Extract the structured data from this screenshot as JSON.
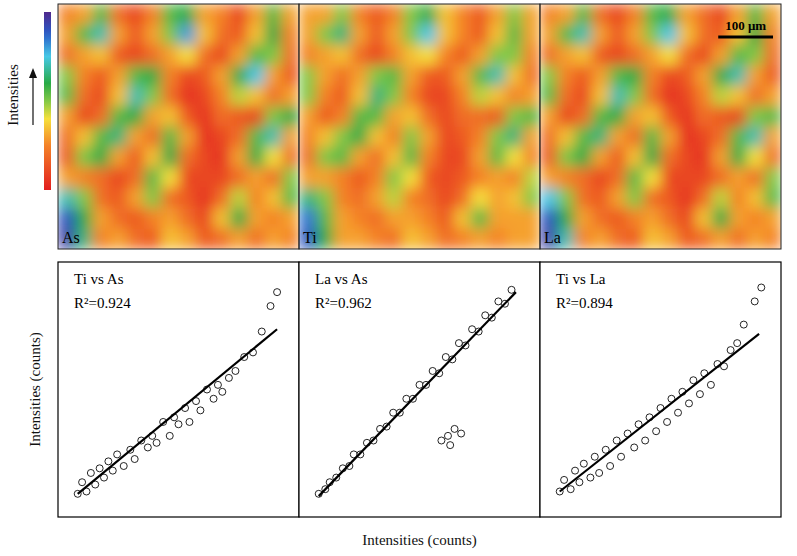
{
  "figure": {
    "colorbar": {
      "label": "Intensities",
      "range": [
        0,
        1
      ]
    },
    "x_label": "Intensities (counts)",
    "y_label": "Intensities (counts)"
  },
  "chart_data": [
    {
      "type": "heatmap",
      "title": "As",
      "xlim": [
        0,
        440
      ],
      "ylim": [
        0,
        444
      ],
      "tick_labels": false,
      "cells": [
        [
          0.25,
          0.3,
          0.55,
          0.2,
          0.1,
          0.25,
          0.55,
          0.6,
          0.3,
          0.25,
          0.1,
          0.3,
          0.55,
          0.3
        ],
        [
          0.3,
          0.55,
          0.7,
          0.3,
          0.15,
          0.3,
          0.5,
          0.8,
          0.35,
          0.2,
          0.15,
          0.35,
          0.6,
          0.25
        ],
        [
          0.2,
          0.3,
          0.35,
          0.15,
          0.1,
          0.2,
          0.3,
          0.4,
          0.2,
          0.1,
          0.3,
          0.55,
          0.5,
          0.2
        ],
        [
          0.5,
          0.25,
          0.15,
          0.3,
          0.55,
          0.6,
          0.25,
          0.1,
          0.15,
          0.3,
          0.6,
          0.75,
          0.3,
          0.15
        ],
        [
          0.55,
          0.2,
          0.1,
          0.35,
          0.7,
          0.5,
          0.2,
          0.05,
          0.1,
          0.25,
          0.45,
          0.35,
          0.2,
          0.3
        ],
        [
          0.3,
          0.1,
          0.2,
          0.55,
          0.6,
          0.3,
          0.35,
          0.15,
          0.05,
          0.2,
          0.15,
          0.1,
          0.5,
          0.6
        ],
        [
          0.2,
          0.35,
          0.55,
          0.65,
          0.3,
          0.2,
          0.55,
          0.3,
          0.05,
          0.1,
          0.2,
          0.55,
          0.7,
          0.3
        ],
        [
          0.15,
          0.5,
          0.6,
          0.3,
          0.15,
          0.35,
          0.6,
          0.2,
          0.1,
          0.05,
          0.3,
          0.6,
          0.4,
          0.2
        ],
        [
          0.3,
          0.25,
          0.2,
          0.1,
          0.2,
          0.55,
          0.4,
          0.1,
          0.1,
          0.1,
          0.2,
          0.3,
          0.2,
          0.5
        ],
        [
          0.7,
          0.5,
          0.2,
          0.15,
          0.3,
          0.5,
          0.2,
          0.15,
          0.05,
          0.2,
          0.45,
          0.25,
          0.35,
          0.55
        ],
        [
          0.9,
          0.6,
          0.3,
          0.2,
          0.15,
          0.25,
          0.3,
          0.2,
          0.1,
          0.35,
          0.6,
          0.3,
          0.25,
          0.3
        ],
        [
          0.95,
          0.65,
          0.25,
          0.3,
          0.2,
          0.15,
          0.35,
          0.3,
          0.15,
          0.2,
          0.3,
          0.2,
          0.3,
          0.25
        ]
      ]
    },
    {
      "type": "heatmap",
      "title": "Ti",
      "xlim": [
        0,
        440
      ],
      "ylim": [
        0,
        444
      ],
      "tick_labels": false,
      "cells": [
        [
          0.3,
          0.3,
          0.5,
          0.25,
          0.15,
          0.25,
          0.5,
          0.6,
          0.35,
          0.25,
          0.15,
          0.3,
          0.5,
          0.3
        ],
        [
          0.3,
          0.5,
          0.65,
          0.3,
          0.15,
          0.3,
          0.5,
          0.75,
          0.35,
          0.25,
          0.15,
          0.35,
          0.55,
          0.3
        ],
        [
          0.25,
          0.3,
          0.35,
          0.2,
          0.1,
          0.25,
          0.35,
          0.4,
          0.25,
          0.15,
          0.3,
          0.5,
          0.5,
          0.25
        ],
        [
          0.5,
          0.3,
          0.2,
          0.3,
          0.5,
          0.55,
          0.3,
          0.15,
          0.15,
          0.3,
          0.55,
          0.7,
          0.35,
          0.2
        ],
        [
          0.5,
          0.25,
          0.15,
          0.35,
          0.65,
          0.5,
          0.25,
          0.1,
          0.1,
          0.25,
          0.45,
          0.35,
          0.25,
          0.3
        ],
        [
          0.3,
          0.15,
          0.25,
          0.55,
          0.55,
          0.3,
          0.35,
          0.2,
          0.1,
          0.2,
          0.2,
          0.15,
          0.5,
          0.55
        ],
        [
          0.25,
          0.35,
          0.5,
          0.6,
          0.35,
          0.25,
          0.5,
          0.3,
          0.1,
          0.15,
          0.25,
          0.5,
          0.65,
          0.3
        ],
        [
          0.2,
          0.5,
          0.55,
          0.3,
          0.2,
          0.35,
          0.55,
          0.25,
          0.1,
          0.1,
          0.3,
          0.55,
          0.4,
          0.25
        ],
        [
          0.3,
          0.3,
          0.25,
          0.15,
          0.25,
          0.5,
          0.4,
          0.15,
          0.1,
          0.15,
          0.25,
          0.3,
          0.25,
          0.45
        ],
        [
          0.65,
          0.5,
          0.25,
          0.2,
          0.3,
          0.45,
          0.25,
          0.2,
          0.1,
          0.2,
          0.4,
          0.3,
          0.35,
          0.5
        ],
        [
          0.85,
          0.55,
          0.3,
          0.25,
          0.2,
          0.3,
          0.3,
          0.25,
          0.15,
          0.35,
          0.55,
          0.3,
          0.3,
          0.3
        ],
        [
          0.9,
          0.6,
          0.3,
          0.3,
          0.25,
          0.2,
          0.35,
          0.3,
          0.2,
          0.25,
          0.3,
          0.25,
          0.3,
          0.3
        ]
      ]
    },
    {
      "type": "heatmap",
      "title": "La",
      "xlim": [
        0,
        440
      ],
      "ylim": [
        0,
        444
      ],
      "tick_labels": false,
      "scale_bar": {
        "label": "100 μm",
        "length": 100
      },
      "cells": [
        [
          0.25,
          0.3,
          0.55,
          0.2,
          0.1,
          0.25,
          0.55,
          0.6,
          0.3,
          0.2,
          0.1,
          0.3,
          0.55,
          0.3
        ],
        [
          0.3,
          0.55,
          0.7,
          0.3,
          0.15,
          0.3,
          0.5,
          0.75,
          0.35,
          0.2,
          0.15,
          0.35,
          0.6,
          0.25
        ],
        [
          0.2,
          0.3,
          0.35,
          0.15,
          0.1,
          0.2,
          0.3,
          0.4,
          0.2,
          0.1,
          0.3,
          0.55,
          0.5,
          0.2
        ],
        [
          0.5,
          0.25,
          0.15,
          0.3,
          0.55,
          0.6,
          0.25,
          0.1,
          0.15,
          0.3,
          0.6,
          0.7,
          0.3,
          0.15
        ],
        [
          0.55,
          0.2,
          0.1,
          0.35,
          0.7,
          0.5,
          0.2,
          0.05,
          0.1,
          0.25,
          0.45,
          0.35,
          0.2,
          0.3
        ],
        [
          0.3,
          0.1,
          0.2,
          0.55,
          0.6,
          0.3,
          0.35,
          0.15,
          0.05,
          0.2,
          0.15,
          0.1,
          0.5,
          0.55
        ],
        [
          0.2,
          0.35,
          0.55,
          0.65,
          0.3,
          0.2,
          0.55,
          0.3,
          0.05,
          0.1,
          0.2,
          0.55,
          0.7,
          0.3
        ],
        [
          0.15,
          0.5,
          0.6,
          0.3,
          0.15,
          0.35,
          0.6,
          0.2,
          0.1,
          0.05,
          0.3,
          0.6,
          0.4,
          0.2
        ],
        [
          0.3,
          0.25,
          0.2,
          0.1,
          0.2,
          0.55,
          0.4,
          0.1,
          0.1,
          0.1,
          0.2,
          0.3,
          0.2,
          0.5
        ],
        [
          0.75,
          0.5,
          0.2,
          0.15,
          0.3,
          0.5,
          0.2,
          0.15,
          0.05,
          0.2,
          0.45,
          0.25,
          0.35,
          0.55
        ],
        [
          0.9,
          0.6,
          0.3,
          0.2,
          0.15,
          0.25,
          0.3,
          0.2,
          0.1,
          0.35,
          0.6,
          0.3,
          0.25,
          0.3
        ],
        [
          0.95,
          0.7,
          0.25,
          0.3,
          0.2,
          0.15,
          0.35,
          0.3,
          0.15,
          0.2,
          0.3,
          0.2,
          0.3,
          0.25
        ]
      ]
    },
    {
      "type": "scatter",
      "title": "Ti vs As",
      "annotations": [
        "R²=0.924"
      ],
      "color": "#000000",
      "marker": "open-circle",
      "xlim": [
        -5,
        105
      ],
      "ylim": [
        -5,
        105
      ],
      "tick_labels": false,
      "x": [
        4,
        6,
        8,
        10,
        12,
        14,
        16,
        18,
        20,
        22,
        25,
        28,
        30,
        33,
        36,
        38,
        40,
        43,
        46,
        48,
        50,
        53,
        55,
        58,
        60,
        63,
        66,
        68,
        70,
        73,
        76,
        80,
        84,
        88,
        92,
        95
      ],
      "y": [
        5,
        10,
        6,
        14,
        9,
        16,
        12,
        19,
        15,
        22,
        17,
        24,
        20,
        28,
        25,
        30,
        27,
        36,
        30,
        38,
        35,
        42,
        36,
        45,
        41,
        50,
        46,
        52,
        49,
        55,
        58,
        64,
        66,
        75,
        86,
        92
      ],
      "trend": {
        "x": [
          4,
          95
        ],
        "y": [
          5,
          76
        ]
      }
    },
    {
      "type": "scatter",
      "title": "La vs As",
      "annotations": [
        "R²=0.962"
      ],
      "color": "#000000",
      "marker": "open-circle",
      "xlim": [
        -5,
        105
      ],
      "ylim": [
        -5,
        105
      ],
      "tick_labels": false,
      "x": [
        4,
        7,
        9,
        12,
        15,
        18,
        20,
        23,
        26,
        29,
        32,
        35,
        38,
        41,
        44,
        47,
        50,
        53,
        56,
        59,
        62,
        65,
        68,
        71,
        74,
        77,
        80,
        83,
        86,
        89,
        92,
        60,
        63,
        66,
        69,
        64
      ],
      "y": [
        5,
        7,
        10,
        12,
        16,
        17,
        22,
        22,
        27,
        28,
        33,
        34,
        40,
        40,
        46,
        46,
        52,
        52,
        58,
        57,
        64,
        63,
        70,
        69,
        76,
        75,
        82,
        81,
        88,
        87,
        93,
        28,
        30,
        33,
        31,
        26
      ],
      "trend": {
        "x": [
          4,
          94
        ],
        "y": [
          4,
          92
        ]
      }
    },
    {
      "type": "scatter",
      "title": "Ti vs La",
      "annotations": [
        "R²=0.894"
      ],
      "color": "#000000",
      "marker": "open-circle",
      "xlim": [
        -5,
        105
      ],
      "ylim": [
        -5,
        105
      ],
      "tick_labels": false,
      "x": [
        4,
        6,
        9,
        11,
        13,
        15,
        18,
        20,
        22,
        25,
        27,
        30,
        32,
        35,
        38,
        40,
        43,
        45,
        48,
        50,
        53,
        55,
        58,
        60,
        63,
        65,
        68,
        70,
        73,
        76,
        79,
        82,
        85,
        88,
        93,
        96
      ],
      "y": [
        6,
        11,
        7,
        15,
        10,
        18,
        12,
        21,
        14,
        24,
        17,
        28,
        21,
        31,
        25,
        35,
        28,
        38,
        32,
        42,
        36,
        46,
        40,
        49,
        44,
        54,
        48,
        57,
        52,
        61,
        60,
        67,
        70,
        78,
        88,
        94
      ],
      "trend": {
        "x": [
          4,
          95
        ],
        "y": [
          6,
          74
        ]
      }
    }
  ]
}
